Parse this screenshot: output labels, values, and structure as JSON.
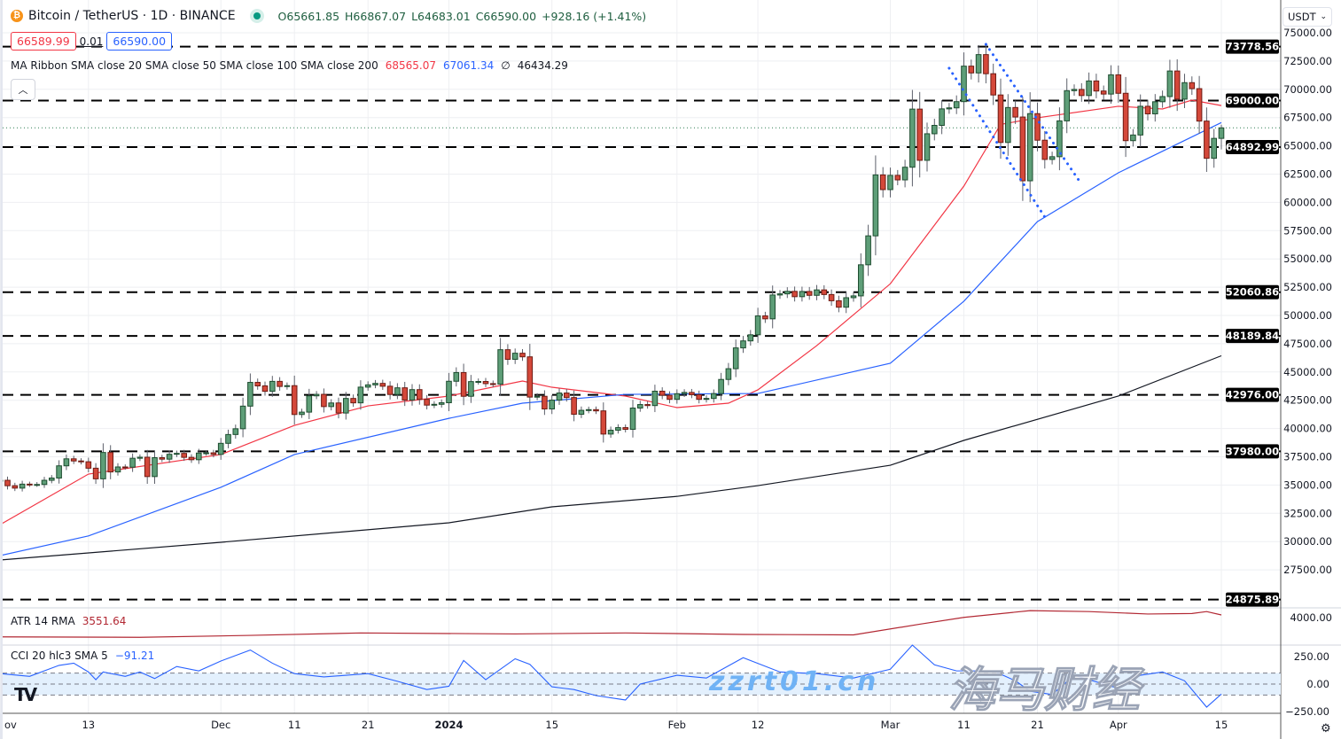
{
  "header": {
    "symbol_title": "Bitcoin / TetherUS · 1D · BINANCE",
    "open": "O65661.85",
    "high": "H66867.07",
    "low": "L64683.01",
    "close": "C66590.00",
    "change": "+928.16 (+1.41%)",
    "sell_price": "66589.99",
    "spread": "0.01",
    "buy_price": "66590.00",
    "collapse_icon": "chevron-up-icon",
    "currency_selector": "USDT"
  },
  "indicators": {
    "ma_ribbon": {
      "title": "MA Ribbon SMA close 20 SMA close 50 SMA close 100 SMA close 200",
      "v20": "68565.07",
      "v50": "67061.34",
      "v100": "∅",
      "v200": "46434.29"
    },
    "atr": {
      "title": "ATR 14 RMA",
      "value": "3551.64",
      "axis_label": "4000.00"
    },
    "cci": {
      "title": "CCI 20 hlc3 SMA 5",
      "value": "−91.21",
      "axis_labels": [
        "250.00",
        "0.00",
        "−250.00"
      ]
    }
  },
  "watermark": {
    "cn": "海马财经",
    "url": "zzrt01.cn"
  },
  "colors": {
    "up": "#5e9e78",
    "up_border": "#1e4d30",
    "down": "#d4483a",
    "down_border": "#6e1c14",
    "sma20": "#f23645",
    "sma50": "#2962ff",
    "sma200": "#131722",
    "atr": "#b22833",
    "cci": "#2962ff",
    "levels": "#000000"
  },
  "chart_data": {
    "type": "candlestick",
    "instrument": "Bitcoin / TetherUS",
    "interval": "1D",
    "y_axis": {
      "range": [
        24000,
        76000
      ],
      "ticks": [
        75000,
        72500,
        70000,
        67500,
        65000,
        62500,
        60000,
        57500,
        55000,
        52500,
        50000,
        47500,
        45000,
        42500,
        40000,
        37500,
        35000,
        32500,
        30000,
        27500
      ]
    },
    "x_axis": {
      "range": [
        "2023-11-01",
        "2024-04-15"
      ],
      "ticks": [
        {
          "date": "2023-11-01",
          "label": "ov"
        },
        {
          "date": "2023-11-13",
          "label": "13"
        },
        {
          "date": "2023-12-01",
          "label": "Dec"
        },
        {
          "date": "2023-12-11",
          "label": "11"
        },
        {
          "date": "2023-12-21",
          "label": "21"
        },
        {
          "date": "2024-01-01",
          "label": "2024"
        },
        {
          "date": "2024-01-15",
          "label": "15"
        },
        {
          "date": "2024-02-01",
          "label": "Feb"
        },
        {
          "date": "2024-02-12",
          "label": "12"
        },
        {
          "date": "2024-03-01",
          "label": "Mar"
        },
        {
          "date": "2024-03-11",
          "label": "11"
        },
        {
          "date": "2024-03-21",
          "label": "21"
        },
        {
          "date": "2024-04-01",
          "label": "Apr"
        },
        {
          "date": "2024-04-15",
          "label": "15"
        }
      ]
    },
    "grid": true,
    "daily_closes": {
      "2023-11": [
        35420,
        34940,
        34730,
        35080,
        35050,
        35050,
        35420,
        35620,
        36700,
        37320,
        37130,
        37060,
        36490,
        35550,
        37880,
        36160,
        36600,
        36580,
        37370,
        37460,
        35750,
        37420,
        37290,
        37720,
        37800,
        37450,
        37240,
        37830,
        37850,
        37710
      ],
      "2023-12": [
        38690,
        39470,
        39980,
        41980,
        44080,
        43770,
        43290,
        44170,
        43720,
        43790,
        41240,
        41450,
        42890,
        43020,
        41940,
        42260,
        41370,
        42660,
        42270,
        43660,
        43860,
        43990,
        43740,
        43010,
        43600,
        42520,
        43440,
        42580,
        42070,
        42140,
        42280
      ],
      "2024-01": [
        44180,
        44950,
        42850,
        44150,
        44160,
        43970,
        43930,
        46970,
        46120,
        46660,
        46340,
        42780,
        42850,
        41730,
        42510,
        43140,
        42740,
        41260,
        41610,
        41670,
        41560,
        39510,
        39850,
        40080,
        39930,
        41810,
        42120,
        42030,
        43300,
        42940,
        42580
      ],
      "2024-02": [
        43080,
        43190,
        42990,
        42580,
        42660,
        43090,
        44340,
        45290,
        47130,
        47750,
        48290,
        49960,
        49700,
        51810,
        51910,
        52130,
        51660,
        52120,
        51780,
        52260,
        51850,
        51300,
        50730,
        51570,
        51730,
        54480,
        57040,
        62430,
        61130
      ],
      "2024-03": [
        62390,
        61990,
        63110,
        68250,
        63720,
        66070,
        66810,
        68270,
        68360,
        68910,
        72050,
        71450,
        73070,
        71380,
        69500,
        65300,
        68390,
        67550,
        61910,
        67850,
        65500,
        63800,
        64040,
        67210,
        69880,
        69990,
        69450,
        70740,
        69850,
        69580,
        71280
      ],
      "2024-04": [
        69650,
        65460,
        65960,
        68500,
        67830,
        68900,
        69360,
        71620,
        69130,
        70590,
        70060,
        67190,
        63900,
        65661.85,
        66590
      ]
    },
    "last_candle": {
      "date": "2024-04-15",
      "open": 65661.85,
      "high": 66867.07,
      "low": 64683.01,
      "close": 66590.0
    },
    "current_price": 66590.0,
    "horizontal_levels": [
      73778.56,
      69000.0,
      64892.99,
      52060.86,
      48189.84,
      42976.0,
      37980.0,
      24875.89
    ],
    "trendlines": [
      {
        "from": [
          "2024-03-09",
          71870
        ],
        "to": [
          "2024-03-22",
          58700
        ]
      },
      {
        "from": [
          "2024-03-14",
          73980
        ],
        "to": [
          "2024-03-27",
          61600
        ]
      }
    ],
    "series": [
      {
        "name": "SMA close 20",
        "points": [
          [
            "2023-11-01",
            31500
          ],
          [
            "2023-11-13",
            35970
          ],
          [
            "2023-12-01",
            37700
          ],
          [
            "2023-12-11",
            40280
          ],
          [
            "2023-12-21",
            42000
          ],
          [
            "2024-01-01",
            42870
          ],
          [
            "2024-01-11",
            44200
          ],
          [
            "2024-01-15",
            43650
          ],
          [
            "2024-01-25",
            42870
          ],
          [
            "2024-02-01",
            41850
          ],
          [
            "2024-02-08",
            42240
          ],
          [
            "2024-02-12",
            43420
          ],
          [
            "2024-02-20",
            47330
          ],
          [
            "2024-03-01",
            52800
          ],
          [
            "2024-03-11",
            61440
          ],
          [
            "2024-03-16",
            66900
          ],
          [
            "2024-03-21",
            67480
          ],
          [
            "2024-04-01",
            68500
          ],
          [
            "2024-04-07",
            68260
          ],
          [
            "2024-04-11",
            69040
          ],
          [
            "2024-04-15",
            68565.07
          ]
        ]
      },
      {
        "name": "SMA close 50",
        "points": [
          [
            "2023-11-01",
            28760
          ],
          [
            "2023-11-13",
            30500
          ],
          [
            "2023-12-01",
            34800
          ],
          [
            "2023-12-11",
            37700
          ],
          [
            "2024-01-01",
            40900
          ],
          [
            "2024-01-11",
            42240
          ],
          [
            "2024-01-25",
            43020
          ],
          [
            "2024-02-12",
            43100
          ],
          [
            "2024-03-01",
            45770
          ],
          [
            "2024-03-11",
            51260
          ],
          [
            "2024-03-21",
            58300
          ],
          [
            "2024-04-01",
            62620
          ],
          [
            "2024-04-15",
            67061.34
          ]
        ]
      },
      {
        "name": "SMA close 200",
        "points": [
          [
            "2023-11-01",
            28370
          ],
          [
            "2023-12-01",
            29940
          ],
          [
            "2024-01-01",
            31660
          ],
          [
            "2024-01-15",
            33070
          ],
          [
            "2024-02-01",
            34000
          ],
          [
            "2024-02-12",
            34950
          ],
          [
            "2024-03-01",
            36750
          ],
          [
            "2024-03-11",
            38950
          ],
          [
            "2024-04-01",
            42870
          ],
          [
            "2024-04-15",
            46434.29
          ]
        ]
      }
    ],
    "atr": {
      "range": [
        1000,
        4100
      ],
      "points": [
        [
          "2023-11-01",
          1300
        ],
        [
          "2023-11-20",
          1250
        ],
        [
          "2023-12-05",
          1450
        ],
        [
          "2023-12-20",
          1700
        ],
        [
          "2024-01-10",
          1600
        ],
        [
          "2024-01-25",
          1700
        ],
        [
          "2024-02-10",
          1550
        ],
        [
          "2024-02-25",
          1500
        ],
        [
          "2024-03-05",
          2600
        ],
        [
          "2024-03-11",
          3300
        ],
        [
          "2024-03-20",
          4000
        ],
        [
          "2024-03-28",
          3900
        ],
        [
          "2024-04-05",
          3650
        ],
        [
          "2024-04-11",
          3700
        ],
        [
          "2024-04-13",
          3900
        ],
        [
          "2024-04-15",
          3551.64
        ]
      ]
    },
    "cci": {
      "range": [
        -280,
        380
      ],
      "band": [
        -100,
        100
      ],
      "points": [
        [
          "2023-11-01",
          95
        ],
        [
          "2023-11-05",
          70
        ],
        [
          "2023-11-09",
          170
        ],
        [
          "2023-11-11",
          190
        ],
        [
          "2023-11-13",
          110
        ],
        [
          "2023-11-14",
          40
        ],
        [
          "2023-11-15",
          110
        ],
        [
          "2023-11-18",
          70
        ],
        [
          "2023-11-20",
          110
        ],
        [
          "2023-11-22",
          50
        ],
        [
          "2023-11-25",
          160
        ],
        [
          "2023-11-28",
          120
        ],
        [
          "2023-12-01",
          210
        ],
        [
          "2023-12-05",
          310
        ],
        [
          "2023-12-08",
          190
        ],
        [
          "2023-12-11",
          95
        ],
        [
          "2023-12-15",
          65
        ],
        [
          "2023-12-21",
          95
        ],
        [
          "2023-12-25",
          25
        ],
        [
          "2023-12-29",
          -50
        ],
        [
          "2024-01-01",
          -20
        ],
        [
          "2024-01-03",
          215
        ],
        [
          "2024-01-06",
          40
        ],
        [
          "2024-01-10",
          230
        ],
        [
          "2024-01-12",
          180
        ],
        [
          "2024-01-15",
          -25
        ],
        [
          "2024-01-18",
          -50
        ],
        [
          "2024-01-21",
          -105
        ],
        [
          "2024-01-25",
          -145
        ],
        [
          "2024-01-27",
          0
        ],
        [
          "2024-02-01",
          80
        ],
        [
          "2024-02-05",
          55
        ],
        [
          "2024-02-10",
          240
        ],
        [
          "2024-02-15",
          110
        ],
        [
          "2024-02-20",
          95
        ],
        [
          "2024-02-25",
          55
        ],
        [
          "2024-03-01",
          135
        ],
        [
          "2024-03-04",
          355
        ],
        [
          "2024-03-07",
          175
        ],
        [
          "2024-03-10",
          120
        ],
        [
          "2024-03-15",
          120
        ],
        [
          "2024-03-18",
          30
        ],
        [
          "2024-03-20",
          -65
        ],
        [
          "2024-03-23",
          -95
        ],
        [
          "2024-03-26",
          80
        ],
        [
          "2024-04-01",
          -40
        ],
        [
          "2024-04-04",
          80
        ],
        [
          "2024-04-07",
          110
        ],
        [
          "2024-04-10",
          30
        ],
        [
          "2024-04-13",
          -210
        ],
        [
          "2024-04-15",
          -91.21
        ]
      ]
    }
  }
}
